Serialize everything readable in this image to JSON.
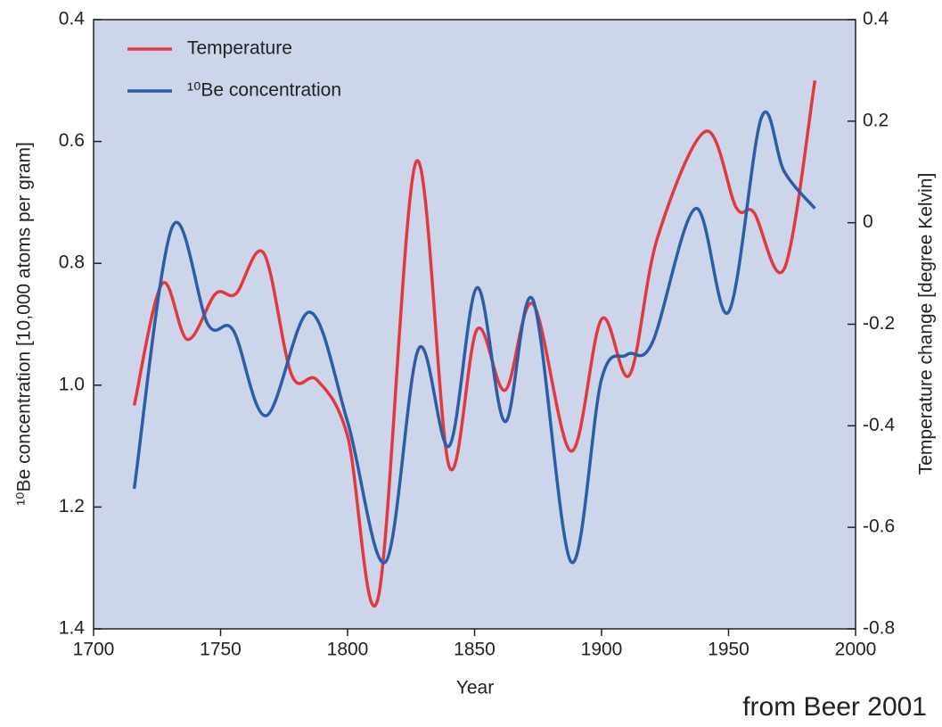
{
  "chart_data": {
    "type": "line",
    "y_label": "¹⁰Be concentration [10,000 atoms per gram]",
    "y2_label": "Temperature change [degree Kelvin]",
    "x_label": "Year",
    "annotation": "from Beer 2001",
    "xlim": [
      1700,
      2000
    ],
    "xticks": [
      1700,
      1750,
      1800,
      1850,
      1900,
      1950,
      2000
    ],
    "ylim": [
      1.4,
      0.4
    ],
    "yticks": [
      0.4,
      0.6,
      0.8,
      {
        "value": 1,
        "label": "1.0"
      },
      1.2,
      1.4
    ],
    "y2lim": [
      -0.8,
      0.4
    ],
    "y2ticks": [
      0.4,
      0.2,
      0,
      -0.2,
      -0.4,
      -0.6,
      -0.8
    ],
    "legend": "upper left",
    "series": [
      {
        "name": "Temperature",
        "color": "#e2383f",
        "axis": "y2",
        "x": [
          1716,
          1727,
          1737,
          1748,
          1756,
          1767,
          1778,
          1788,
          1800,
          1812,
          1827,
          1840,
          1851,
          1862,
          1873,
          1888,
          1900,
          1911,
          1922,
          1941,
          1953,
          1960,
          1972,
          1984
        ],
        "values": [
          -0.36,
          -0.12,
          -0.23,
          -0.14,
          -0.14,
          -0.06,
          -0.3,
          -0.31,
          -0.42,
          -0.74,
          0.12,
          -0.48,
          -0.21,
          -0.33,
          -0.16,
          -0.45,
          -0.19,
          -0.3,
          -0.03,
          0.18,
          0.03,
          0.02,
          -0.09,
          0.28
        ]
      },
      {
        "name": "¹⁰Be concentration",
        "color": "#2c5da6",
        "x": [
          1716,
          1731,
          1745,
          1755,
          1768,
          1785,
          1800,
          1815,
          1828,
          1840,
          1851,
          1862,
          1873,
          1888,
          1900,
          1910,
          1920,
          1937,
          1950,
          1963,
          1972,
          1984
        ],
        "values": [
          1.17,
          0.74,
          0.9,
          0.91,
          1.05,
          0.88,
          1.06,
          1.29,
          0.94,
          1.1,
          0.84,
          1.06,
          0.86,
          1.29,
          0.99,
          0.95,
          0.93,
          0.71,
          0.88,
          0.56,
          0.65,
          0.71
        ]
      }
    ]
  }
}
